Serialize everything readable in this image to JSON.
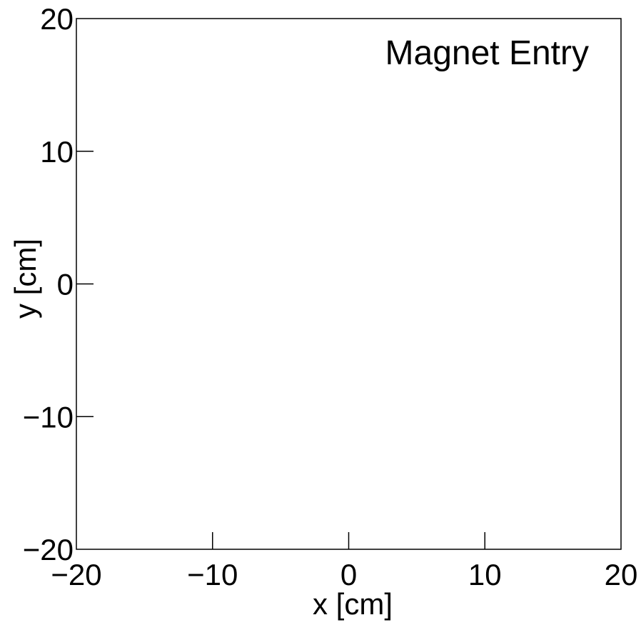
{
  "chart_data": {
    "type": "scatter",
    "title": "",
    "annotation": "Magnet Entry",
    "xlabel": "x [cm]",
    "ylabel": "y [cm]",
    "xlim": [
      -20,
      20
    ],
    "ylim": [
      -20,
      20
    ],
    "xticks": [
      -20,
      -10,
      0,
      10,
      20
    ],
    "yticks": [
      -20,
      -10,
      0,
      10,
      20
    ],
    "xtick_labels": [
      "−20",
      "−10",
      "0",
      "10",
      "20"
    ],
    "ytick_labels": [
      "−20",
      "−10",
      "0",
      "10",
      "20"
    ],
    "grid": false,
    "series": [
      {
        "x": [],
        "y": []
      }
    ]
  }
}
